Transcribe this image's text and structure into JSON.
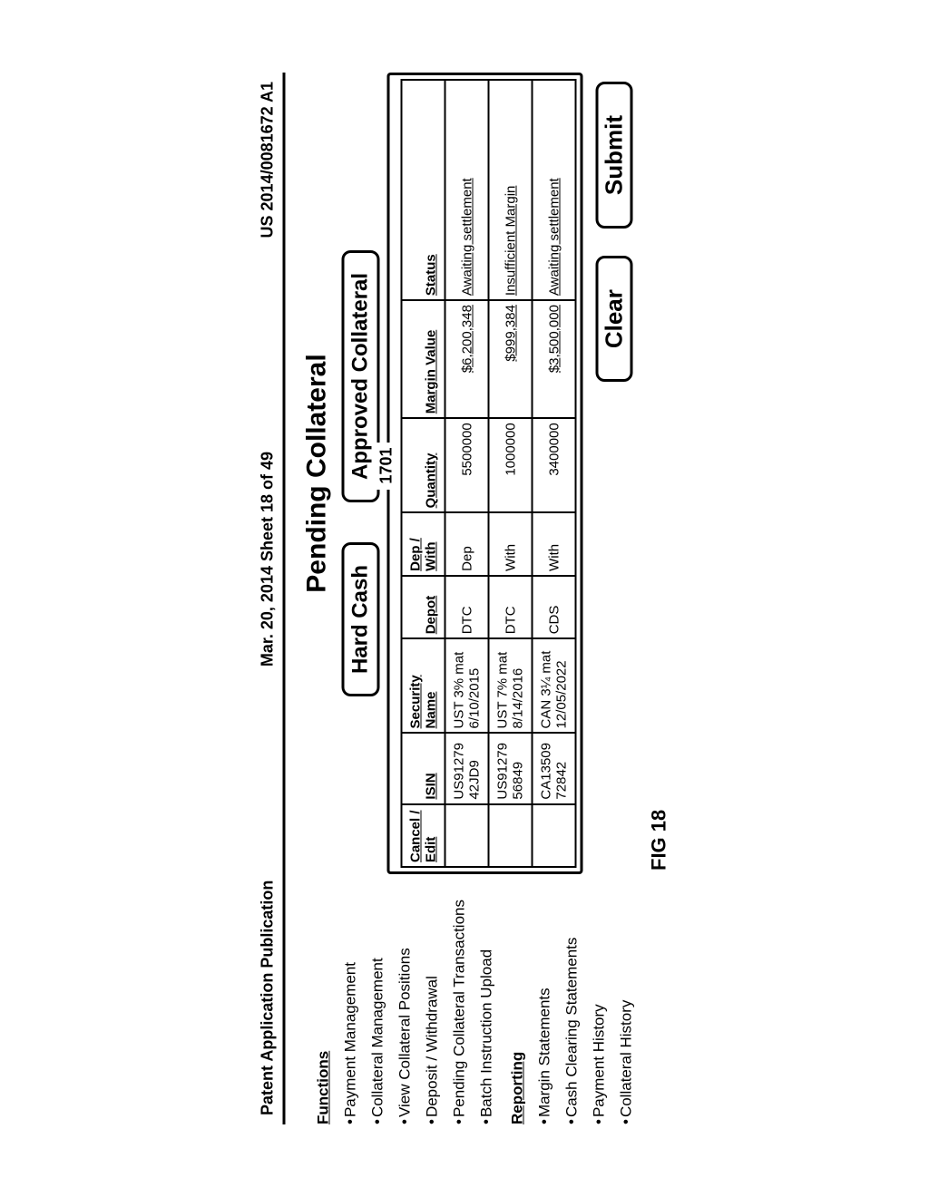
{
  "header": {
    "left": "Patent Application Publication",
    "center": "Mar. 20, 2014  Sheet 18 of 49",
    "right": "US 2014/0081672 A1"
  },
  "title": "Pending Collateral",
  "marker": "1701",
  "figure_label": "FIG 18",
  "tabs": [
    {
      "label": "Hard Cash"
    },
    {
      "label": "Approved Collateral"
    }
  ],
  "sidebar": {
    "functions_title": "Functions",
    "functions": [
      {
        "label": "Payment Management"
      },
      {
        "label": "Collateral Management"
      },
      {
        "label": "View Collateral Positions"
      },
      {
        "label": "Deposit / Withdrawal"
      },
      {
        "label": "Pending Collateral Transactions"
      },
      {
        "label": "Batch Instruction Upload"
      }
    ],
    "reporting_title": "Reporting",
    "reporting": [
      {
        "label": "Margin Statements"
      },
      {
        "label": "Cash Clearing Statements"
      },
      {
        "label": "Payment History"
      },
      {
        "label": "Collateral History"
      }
    ]
  },
  "table": {
    "columns": {
      "cancel": "Cancel / Edit",
      "isin": "ISIN",
      "sec": "Security Name",
      "depot": "Depot",
      "dw": "Dep / With",
      "qty": "Quantity",
      "mv": "Margin Value",
      "status": "Status"
    },
    "rows": [
      {
        "cancel": "",
        "isin": "US9127942JD9",
        "sec": "UST 3% mat 6/10/2015",
        "depot": "DTC",
        "dw": "Dep",
        "qty": "5500000",
        "mv": "$6,200,348",
        "status": "Awaiting settlement"
      },
      {
        "cancel": "",
        "isin": "US9127956849",
        "sec": "UST 7% mat 8/14/2016",
        "depot": "DTC",
        "dw": "With",
        "qty": "1000000",
        "mv": "$999,384",
        "status": "Insufficient Margin"
      },
      {
        "cancel": "",
        "isin": "CA1350972842",
        "sec": "CAN 3¼ mat 12/05/2022",
        "depot": "CDS",
        "dw": "With",
        "qty": "3400000",
        "mv": "$3,500,000",
        "status": "Awaiting settlement"
      }
    ]
  },
  "buttons": {
    "clear": "Clear",
    "submit": "Submit"
  },
  "style": {
    "border_color": "#000000",
    "background_color": "#ffffff",
    "text_color": "#000000",
    "title_fontsize": 30,
    "tab_fontsize": 24,
    "button_fontsize": 26,
    "table_fontsize": 15,
    "header_fontsize": 18,
    "border_width": 3,
    "border_radius": 10
  }
}
